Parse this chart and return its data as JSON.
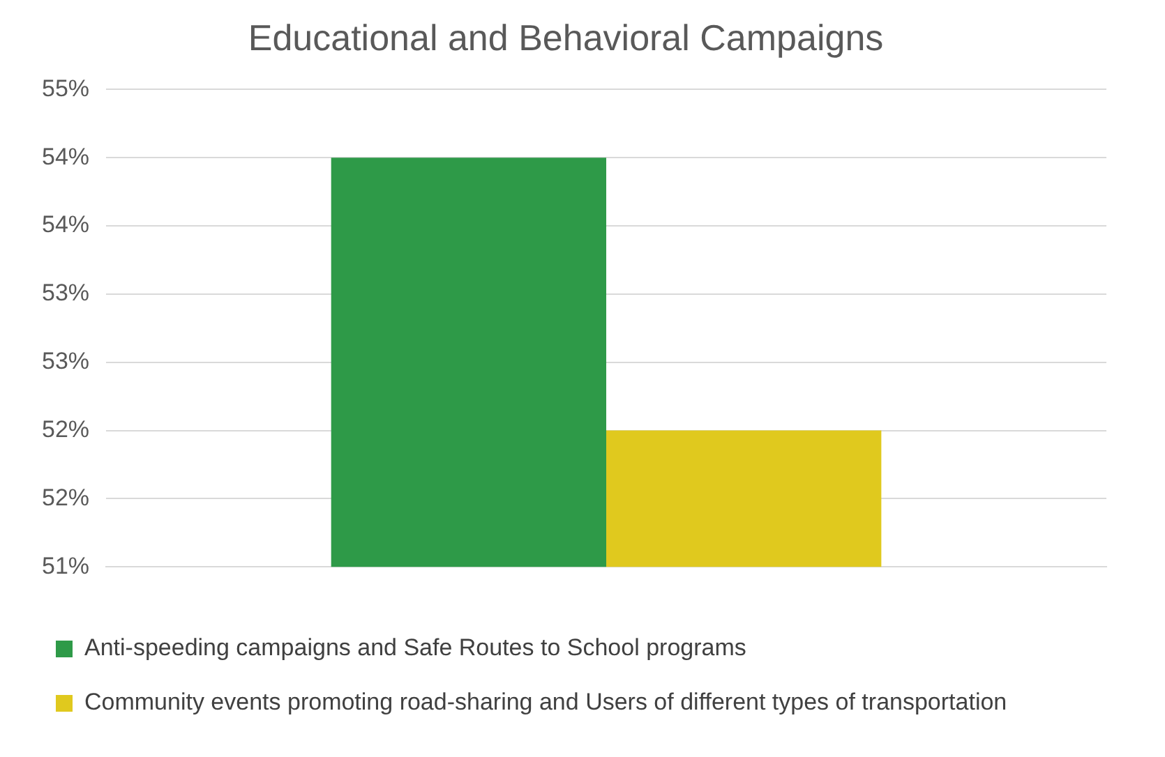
{
  "chart_data": {
    "type": "bar",
    "title": "Educational and Behavioral Campaigns",
    "categories": [
      null
    ],
    "series": [
      {
        "name": "Anti-speeding campaigns and Safe Routes to School programs",
        "color": "#2e9a48",
        "values": [
          54
        ]
      },
      {
        "name": "Community events promoting road-sharing and Users of different types of transportation",
        "color": "#e0c91e",
        "values": [
          52
        ]
      }
    ],
    "ylim": [
      51,
      54.5
    ],
    "yticks": [
      {
        "value": 51,
        "label": "51%"
      },
      {
        "value": 51.5,
        "label": "52%"
      },
      {
        "value": 52,
        "label": "52%"
      },
      {
        "value": 52.5,
        "label": "53%"
      },
      {
        "value": 53,
        "label": "53%"
      },
      {
        "value": 53.5,
        "label": "54%"
      },
      {
        "value": 54,
        "label": "54%"
      },
      {
        "value": 54.5,
        "label": "55%"
      }
    ],
    "grid": "y",
    "legend": "bottom"
  }
}
